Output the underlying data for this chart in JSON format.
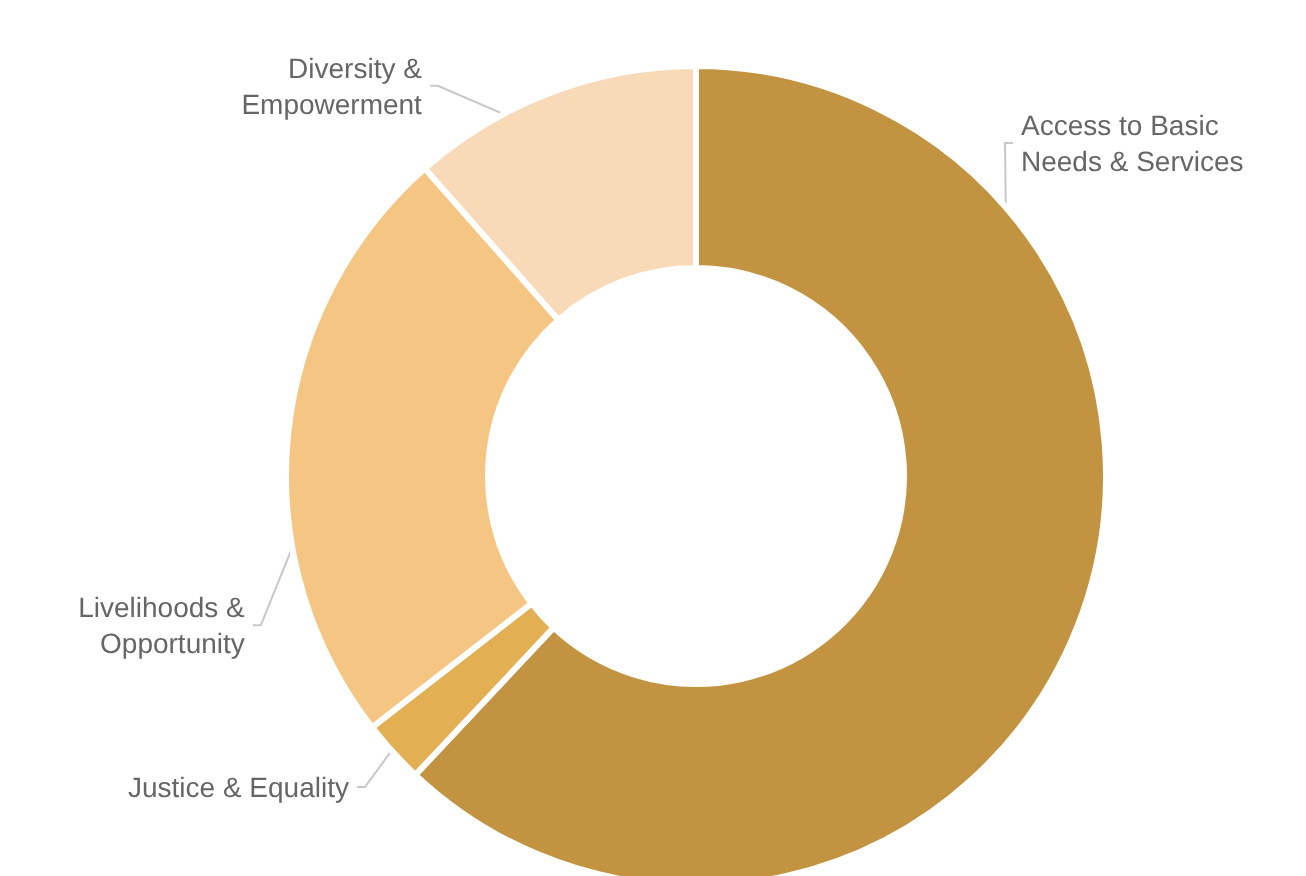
{
  "chart_data": {
    "type": "donut",
    "categories": [
      "Access to Basic Needs & Services",
      "Justice & Equality",
      "Livelihoods & Opportunity",
      "Diversity & Empowerment"
    ],
    "values": [
      62,
      2.5,
      24,
      11.5
    ],
    "colors": [
      "#c29341",
      "#e3af53",
      "#f5c583",
      "#f8dab8"
    ]
  }
}
